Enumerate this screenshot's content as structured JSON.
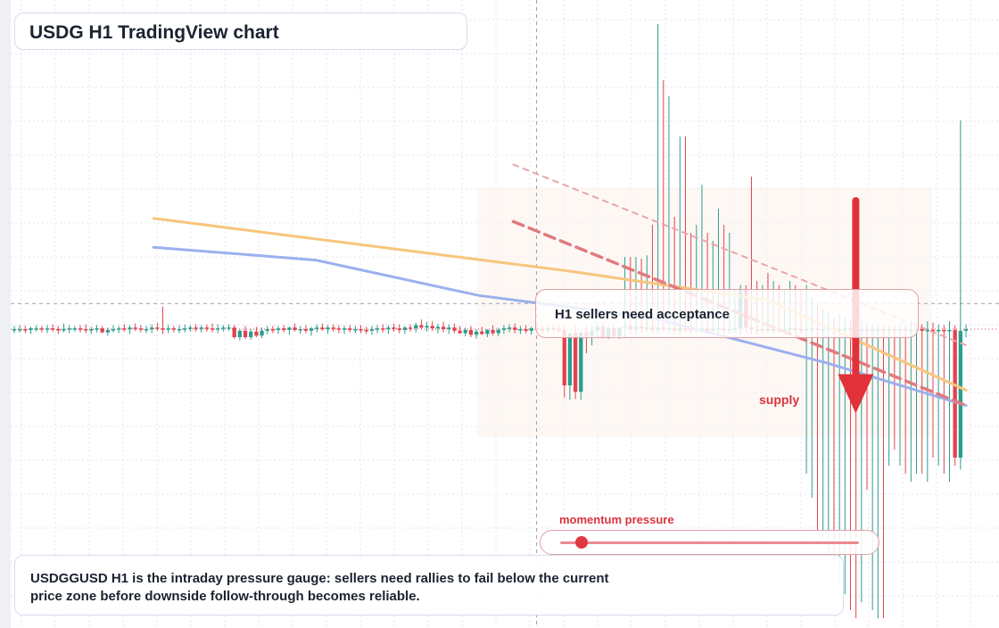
{
  "title": "USDG H1 TradingView chart",
  "callout": {
    "text": "H1 sellers need acceptance"
  },
  "supply_label": "supply",
  "momentum": {
    "label": "momentum pressure",
    "level": 0.07
  },
  "summary": "USDGGUSD H1 is the intraday pressure gauge: sellers need rallies to fail below the current price zone before downside follow-through becomes reliable.",
  "colors": {
    "up": "#2a9d8f",
    "down": "#e0434f",
    "ma_fast": "#f8c57c",
    "ma_slow": "#9bb0ee",
    "supply": "#e03238",
    "grid": "#e3e6ec"
  },
  "chart_data": {
    "type": "candlestick",
    "timeframe": "H1",
    "axis": {
      "x_bars": [
        0,
        164
      ],
      "price_min": -2.0,
      "price_max": 4.0,
      "current_price": 0.0
    },
    "hover_crosshair": {
      "bar": 90,
      "price": 0.32
    },
    "candles": [
      {
        "o": 0.0,
        "h": 0.04,
        "l": -0.05,
        "c": 0.0
      },
      {
        "o": 0.0,
        "h": 0.05,
        "l": -0.04,
        "c": 0.0
      },
      {
        "o": 0.0,
        "h": 0.04,
        "l": -0.05,
        "c": -0.01
      },
      {
        "o": -0.01,
        "h": 0.03,
        "l": -0.06,
        "c": 0.01
      },
      {
        "o": 0.01,
        "h": 0.05,
        "l": -0.03,
        "c": 0.01
      },
      {
        "o": 0.01,
        "h": 0.04,
        "l": -0.04,
        "c": 0.0
      },
      {
        "o": 0.0,
        "h": 0.05,
        "l": -0.05,
        "c": 0.01
      },
      {
        "o": 0.01,
        "h": 0.06,
        "l": -0.03,
        "c": 0.0
      },
      {
        "o": 0.0,
        "h": 0.04,
        "l": -0.06,
        "c": -0.01
      },
      {
        "o": -0.01,
        "h": 0.07,
        "l": -0.04,
        "c": 0.0
      },
      {
        "o": 0.0,
        "h": 0.05,
        "l": -0.05,
        "c": 0.01
      },
      {
        "o": 0.01,
        "h": 0.04,
        "l": -0.03,
        "c": 0.01
      },
      {
        "o": 0.01,
        "h": 0.05,
        "l": -0.04,
        "c": 0.0
      },
      {
        "o": 0.0,
        "h": 0.06,
        "l": -0.05,
        "c": -0.01
      },
      {
        "o": -0.01,
        "h": 0.03,
        "l": -0.06,
        "c": 0.0
      },
      {
        "o": 0.0,
        "h": 0.05,
        "l": -0.04,
        "c": 0.01
      },
      {
        "o": 0.01,
        "h": 0.04,
        "l": -0.05,
        "c": -0.04
      },
      {
        "o": -0.04,
        "h": 0.02,
        "l": -0.08,
        "c": -0.01
      },
      {
        "o": -0.01,
        "h": 0.05,
        "l": -0.04,
        "c": 0.0
      },
      {
        "o": 0.0,
        "h": 0.04,
        "l": -0.05,
        "c": 0.01
      },
      {
        "o": 0.01,
        "h": 0.06,
        "l": -0.03,
        "c": 0.0
      },
      {
        "o": 0.0,
        "h": 0.05,
        "l": -0.06,
        "c": 0.02
      },
      {
        "o": 0.02,
        "h": 0.07,
        "l": -0.02,
        "c": 0.01
      },
      {
        "o": 0.01,
        "h": 0.05,
        "l": -0.04,
        "c": 0.0
      },
      {
        "o": 0.0,
        "h": 0.04,
        "l": -0.05,
        "c": 0.0
      },
      {
        "o": 0.0,
        "h": 0.06,
        "l": -0.05,
        "c": 0.02
      },
      {
        "o": 0.02,
        "h": 0.08,
        "l": -0.02,
        "c": 0.01
      },
      {
        "o": 0.01,
        "h": 0.28,
        "l": -0.06,
        "c": 0.0
      },
      {
        "o": 0.0,
        "h": 0.05,
        "l": -0.05,
        "c": 0.01
      },
      {
        "o": 0.01,
        "h": 0.04,
        "l": -0.04,
        "c": 0.0
      },
      {
        "o": 0.0,
        "h": 0.05,
        "l": -0.05,
        "c": 0.0
      },
      {
        "o": 0.0,
        "h": 0.06,
        "l": -0.04,
        "c": 0.01
      },
      {
        "o": 0.01,
        "h": 0.05,
        "l": -0.03,
        "c": 0.02
      },
      {
        "o": 0.02,
        "h": 0.06,
        "l": -0.03,
        "c": 0.01
      },
      {
        "o": 0.01,
        "h": 0.05,
        "l": -0.04,
        "c": 0.02
      },
      {
        "o": 0.02,
        "h": 0.06,
        "l": -0.03,
        "c": 0.01
      },
      {
        "o": 0.01,
        "h": 0.07,
        "l": -0.04,
        "c": 0.0
      },
      {
        "o": 0.0,
        "h": 0.06,
        "l": -0.05,
        "c": 0.01
      },
      {
        "o": 0.01,
        "h": 0.05,
        "l": -0.03,
        "c": 0.02
      },
      {
        "o": 0.02,
        "h": 0.06,
        "l": -0.02,
        "c": 0.02
      },
      {
        "o": 0.02,
        "h": 0.05,
        "l": -0.12,
        "c": -0.1
      },
      {
        "o": -0.1,
        "h": 0.0,
        "l": -0.14,
        "c": -0.02
      },
      {
        "o": -0.02,
        "h": 0.04,
        "l": -0.12,
        "c": -0.1
      },
      {
        "o": -0.1,
        "h": 0.0,
        "l": -0.13,
        "c": -0.03
      },
      {
        "o": -0.03,
        "h": 0.03,
        "l": -0.1,
        "c": -0.08
      },
      {
        "o": -0.08,
        "h": 0.02,
        "l": -0.11,
        "c": -0.02
      },
      {
        "o": -0.02,
        "h": 0.04,
        "l": -0.06,
        "c": 0.0
      },
      {
        "o": 0.0,
        "h": 0.04,
        "l": -0.05,
        "c": -0.01
      },
      {
        "o": -0.01,
        "h": 0.04,
        "l": -0.06,
        "c": 0.01
      },
      {
        "o": 0.01,
        "h": 0.05,
        "l": -0.04,
        "c": -0.01
      },
      {
        "o": -0.01,
        "h": 0.03,
        "l": -0.07,
        "c": 0.02
      },
      {
        "o": 0.02,
        "h": 0.07,
        "l": -0.03,
        "c": -0.01
      },
      {
        "o": -0.01,
        "h": 0.04,
        "l": -0.06,
        "c": 0.0
      },
      {
        "o": 0.0,
        "h": 0.05,
        "l": -0.05,
        "c": -0.02
      },
      {
        "o": -0.02,
        "h": 0.03,
        "l": -0.08,
        "c": 0.01
      },
      {
        "o": 0.01,
        "h": 0.06,
        "l": -0.04,
        "c": 0.02
      },
      {
        "o": 0.02,
        "h": 0.07,
        "l": -0.02,
        "c": 0.0
      },
      {
        "o": 0.0,
        "h": 0.05,
        "l": -0.06,
        "c": 0.02
      },
      {
        "o": 0.02,
        "h": 0.06,
        "l": -0.03,
        "c": 0.01
      },
      {
        "o": 0.01,
        "h": 0.05,
        "l": -0.05,
        "c": 0.0
      },
      {
        "o": 0.0,
        "h": 0.04,
        "l": -0.06,
        "c": 0.01
      },
      {
        "o": 0.01,
        "h": 0.05,
        "l": -0.04,
        "c": -0.01
      },
      {
        "o": -0.01,
        "h": 0.04,
        "l": -0.05,
        "c": 0.0
      },
      {
        "o": 0.0,
        "h": 0.05,
        "l": -0.05,
        "c": -0.01
      },
      {
        "o": -0.01,
        "h": 0.03,
        "l": -0.06,
        "c": -0.02
      },
      {
        "o": -0.02,
        "h": 0.04,
        "l": -0.07,
        "c": 0.0
      },
      {
        "o": 0.0,
        "h": 0.05,
        "l": -0.05,
        "c": 0.01
      },
      {
        "o": 0.01,
        "h": 0.06,
        "l": -0.04,
        "c": 0.0
      },
      {
        "o": 0.0,
        "h": 0.05,
        "l": -0.06,
        "c": 0.02
      },
      {
        "o": 0.02,
        "h": 0.07,
        "l": -0.03,
        "c": 0.01
      },
      {
        "o": 0.01,
        "h": 0.06,
        "l": -0.05,
        "c": -0.01
      },
      {
        "o": -0.01,
        "h": 0.04,
        "l": -0.06,
        "c": 0.02
      },
      {
        "o": 0.02,
        "h": 0.06,
        "l": -0.03,
        "c": 0.01
      },
      {
        "o": 0.01,
        "h": 0.08,
        "l": -0.04,
        "c": 0.05
      },
      {
        "o": 0.05,
        "h": 0.12,
        "l": 0.0,
        "c": 0.02
      },
      {
        "o": 0.02,
        "h": 0.09,
        "l": -0.03,
        "c": 0.04
      },
      {
        "o": 0.04,
        "h": 0.1,
        "l": -0.02,
        "c": 0.01
      },
      {
        "o": 0.01,
        "h": 0.07,
        "l": -0.05,
        "c": 0.03
      },
      {
        "o": 0.03,
        "h": 0.09,
        "l": -0.04,
        "c": 0.0
      },
      {
        "o": 0.0,
        "h": 0.06,
        "l": -0.06,
        "c": 0.02
      },
      {
        "o": 0.02,
        "h": 0.07,
        "l": -0.05,
        "c": -0.02
      },
      {
        "o": -0.02,
        "h": 0.04,
        "l": -0.06,
        "c": -0.05
      },
      {
        "o": -0.05,
        "h": 0.02,
        "l": -0.09,
        "c": -0.01
      },
      {
        "o": -0.01,
        "h": 0.04,
        "l": -0.1,
        "c": -0.07
      },
      {
        "o": -0.07,
        "h": 0.0,
        "l": -0.12,
        "c": -0.03
      },
      {
        "o": -0.03,
        "h": 0.03,
        "l": -0.07,
        "c": -0.06
      },
      {
        "o": -0.06,
        "h": 0.0,
        "l": -0.1,
        "c": -0.01
      },
      {
        "o": -0.01,
        "h": 0.05,
        "l": -0.08,
        "c": -0.05
      },
      {
        "o": -0.05,
        "h": 0.02,
        "l": -0.09,
        "c": -0.01
      },
      {
        "o": -0.01,
        "h": 0.05,
        "l": -0.06,
        "c": 0.01
      },
      {
        "o": 0.01,
        "h": 0.06,
        "l": -0.04,
        "c": 0.02
      },
      {
        "o": 0.02,
        "h": 0.07,
        "l": -0.05,
        "c": -0.01
      },
      {
        "o": -0.01,
        "h": 0.04,
        "l": -0.06,
        "c": 0.0
      },
      {
        "o": 0.0,
        "h": 0.05,
        "l": -0.05,
        "c": -0.02
      },
      {
        "o": -0.02,
        "h": 0.03,
        "l": -0.07,
        "c": 0.01
      },
      {
        "o": 0.01,
        "h": 0.06,
        "l": -0.03,
        "c": 0.0
      },
      {
        "o": 0.0,
        "h": 0.05,
        "l": -0.06,
        "c": -0.01
      },
      {
        "o": -0.01,
        "h": 0.04,
        "l": -0.05,
        "c": 0.01
      },
      {
        "o": 0.01,
        "h": 0.06,
        "l": -0.04,
        "c": 0.0
      },
      {
        "o": 0.0,
        "h": 0.05,
        "l": -0.05,
        "c": -0.01
      },
      {
        "o": -0.01,
        "h": 0.04,
        "l": -0.85,
        "c": -0.7
      },
      {
        "o": -0.7,
        "h": -0.1,
        "l": -0.88,
        "c": -0.05
      },
      {
        "o": -0.05,
        "h": 0.05,
        "l": -0.87,
        "c": -0.78
      },
      {
        "o": -0.78,
        "h": -0.05,
        "l": -0.88,
        "c": -0.04
      },
      {
        "o": -0.04,
        "h": 0.03,
        "l": -0.3,
        "c": -0.08
      },
      {
        "o": -0.08,
        "h": 0.05,
        "l": -0.2,
        "c": -0.02
      },
      {
        "o": -0.02,
        "h": 0.08,
        "l": -0.1,
        "c": 0.03
      },
      {
        "o": 0.03,
        "h": 0.09,
        "l": -0.06,
        "c": -0.1
      },
      {
        "o": -0.1,
        "h": 0.04,
        "l": -0.12,
        "c": 0.01
      },
      {
        "o": 0.01,
        "h": 0.06,
        "l": -0.08,
        "c": -0.09
      },
      {
        "o": -0.09,
        "h": 0.02,
        "l": -0.12,
        "c": 0.02
      },
      {
        "o": 0.02,
        "h": 0.9,
        "l": -0.1,
        "c": 0.04
      },
      {
        "o": 0.04,
        "h": 0.9,
        "l": -0.06,
        "c": 0.0
      },
      {
        "o": 0.0,
        "h": 0.9,
        "l": -0.08,
        "c": 0.03
      },
      {
        "o": 0.03,
        "h": 0.88,
        "l": -0.05,
        "c": 0.01
      },
      {
        "o": 0.01,
        "h": 0.92,
        "l": -0.04,
        "c": 0.02
      },
      {
        "o": 0.02,
        "h": 1.3,
        "l": -0.05,
        "c": -0.01
      },
      {
        "o": -0.01,
        "h": 3.8,
        "l": -0.06,
        "c": 0.02
      },
      {
        "o": 0.02,
        "h": 3.1,
        "l": -0.04,
        "c": 0.0
      },
      {
        "o": 0.0,
        "h": 2.9,
        "l": -0.05,
        "c": 0.01
      },
      {
        "o": 0.01,
        "h": 1.4,
        "l": -0.06,
        "c": -0.02
      },
      {
        "o": -0.02,
        "h": 2.4,
        "l": -0.07,
        "c": 0.01
      },
      {
        "o": 0.01,
        "h": 2.4,
        "l": -0.05,
        "c": 0.0
      },
      {
        "o": 0.0,
        "h": 1.2,
        "l": -0.06,
        "c": -0.01
      },
      {
        "o": -0.01,
        "h": 1.3,
        "l": -0.05,
        "c": 0.0
      },
      {
        "o": 0.0,
        "h": 1.8,
        "l": -0.04,
        "c": 0.01
      },
      {
        "o": 0.01,
        "h": 1.2,
        "l": -0.06,
        "c": -0.02
      },
      {
        "o": -0.02,
        "h": 1.1,
        "l": -0.05,
        "c": 0.0
      },
      {
        "o": 0.0,
        "h": 1.5,
        "l": -0.06,
        "c": 0.01
      },
      {
        "o": 0.01,
        "h": 1.3,
        "l": -0.05,
        "c": -0.01
      },
      {
        "o": -0.01,
        "h": 1.2,
        "l": -0.06,
        "c": 0.0
      },
      {
        "o": 0.0,
        "h": 0.5,
        "l": -0.05,
        "c": 0.01
      },
      {
        "o": 0.01,
        "h": 0.55,
        "l": -0.06,
        "c": 0.5
      },
      {
        "o": 0.5,
        "h": 0.55,
        "l": -0.05,
        "c": 0.02
      },
      {
        "o": 0.02,
        "h": 1.9,
        "l": -0.06,
        "c": 0.0
      },
      {
        "o": 0.0,
        "h": 0.6,
        "l": -0.07,
        "c": -0.01
      },
      {
        "o": -0.01,
        "h": 0.55,
        "l": -0.05,
        "c": 0.0
      },
      {
        "o": 0.0,
        "h": 0.7,
        "l": -0.04,
        "c": -0.02
      },
      {
        "o": -0.02,
        "h": 0.6,
        "l": -0.06,
        "c": 0.0
      },
      {
        "o": 0.0,
        "h": 0.55,
        "l": -0.05,
        "c": -0.01
      },
      {
        "o": -0.01,
        "h": 0.5,
        "l": -0.06,
        "c": 0.0
      },
      {
        "o": 0.0,
        "h": 0.6,
        "l": -0.05,
        "c": 0.01
      },
      {
        "o": 0.01,
        "h": 0.55,
        "l": -0.05,
        "c": 0.0
      },
      {
        "o": 0.0,
        "h": 0.5,
        "l": -0.06,
        "c": -0.01
      },
      {
        "o": -0.01,
        "h": 0.55,
        "l": -1.8,
        "c": 0.0
      },
      {
        "o": 0.0,
        "h": 0.4,
        "l": -2.1,
        "c": 0.01
      },
      {
        "o": 0.01,
        "h": 0.3,
        "l": -2.5,
        "c": -0.01
      },
      {
        "o": -0.01,
        "h": 0.25,
        "l": -2.6,
        "c": 0.0
      },
      {
        "o": 0.0,
        "h": 0.2,
        "l": -2.8,
        "c": 0.01
      },
      {
        "o": 0.01,
        "h": 0.15,
        "l": -2.9,
        "c": -0.02
      },
      {
        "o": -0.02,
        "h": 0.2,
        "l": -3.2,
        "c": 0.0
      },
      {
        "o": 0.0,
        "h": 0.15,
        "l": -3.3,
        "c": 0.01
      },
      {
        "o": 0.01,
        "h": 0.1,
        "l": -3.5,
        "c": 0.0
      },
      {
        "o": 0.0,
        "h": 0.12,
        "l": -3.6,
        "c": -0.01
      },
      {
        "o": -0.01,
        "h": 0.1,
        "l": -3.4,
        "c": 0.0
      },
      {
        "o": 0.0,
        "h": 0.08,
        "l": -2.0,
        "c": -0.02
      },
      {
        "o": -0.02,
        "h": 0.06,
        "l": -3.5,
        "c": -0.01
      },
      {
        "o": -0.01,
        "h": 0.05,
        "l": -3.6,
        "c": 0.0
      },
      {
        "o": 0.0,
        "h": 0.05,
        "l": -3.6,
        "c": -0.01
      },
      {
        "o": -0.01,
        "h": 0.04,
        "l": -1.7,
        "c": 0.0
      },
      {
        "o": 0.0,
        "h": 0.05,
        "l": -1.5,
        "c": -0.01
      },
      {
        "o": -0.01,
        "h": 0.06,
        "l": -1.7,
        "c": 0.0
      },
      {
        "o": 0.0,
        "h": 0.05,
        "l": -1.8,
        "c": -0.02
      },
      {
        "o": -0.02,
        "h": 0.1,
        "l": -1.9,
        "c": -0.01
      },
      {
        "o": -0.01,
        "h": 0.08,
        "l": -1.8,
        "c": 0.0
      },
      {
        "o": 0.0,
        "h": 0.06,
        "l": -1.8,
        "c": -0.02
      },
      {
        "o": -0.02,
        "h": 0.1,
        "l": -1.9,
        "c": -0.01
      },
      {
        "o": -0.01,
        "h": 0.08,
        "l": -1.6,
        "c": -0.02
      },
      {
        "o": -0.02,
        "h": 0.06,
        "l": -1.7,
        "c": -0.01
      },
      {
        "o": -0.01,
        "h": 0.05,
        "l": -1.8,
        "c": -0.02
      },
      {
        "o": -0.02,
        "h": 0.1,
        "l": -1.9,
        "c": -0.01
      },
      {
        "o": -0.01,
        "h": 0.05,
        "l": -1.7,
        "c": -1.6
      },
      {
        "o": -1.6,
        "h": 2.6,
        "l": -1.75,
        "c": -0.02
      },
      {
        "o": -0.02,
        "h": 0.06,
        "l": -0.1,
        "c": 0.0
      }
    ],
    "moving_averages": [
      {
        "points": [
          [
            24,
            1.38
          ],
          [
            60,
            1.05
          ],
          [
            96,
            0.72
          ],
          [
            130,
            0.36
          ],
          [
            164,
            -0.76
          ]
        ]
      },
      {
        "points": [
          [
            24,
            1.02
          ],
          [
            52,
            0.86
          ],
          [
            80,
            0.42
          ],
          [
            110,
            0.14
          ],
          [
            140,
            -0.42
          ],
          [
            164,
            -0.95
          ]
        ]
      }
    ],
    "trendlines": [
      {
        "style": "dashed-thick",
        "points": [
          [
            86,
            1.34
          ],
          [
            164,
            -0.95
          ]
        ]
      },
      {
        "style": "dashed-thin",
        "points": [
          [
            86,
            2.05
          ],
          [
            164,
            -0.2
          ]
        ]
      }
    ],
    "supply_arrow": {
      "bar": 145,
      "from_price": 1.6,
      "to_price": -1.05
    }
  }
}
